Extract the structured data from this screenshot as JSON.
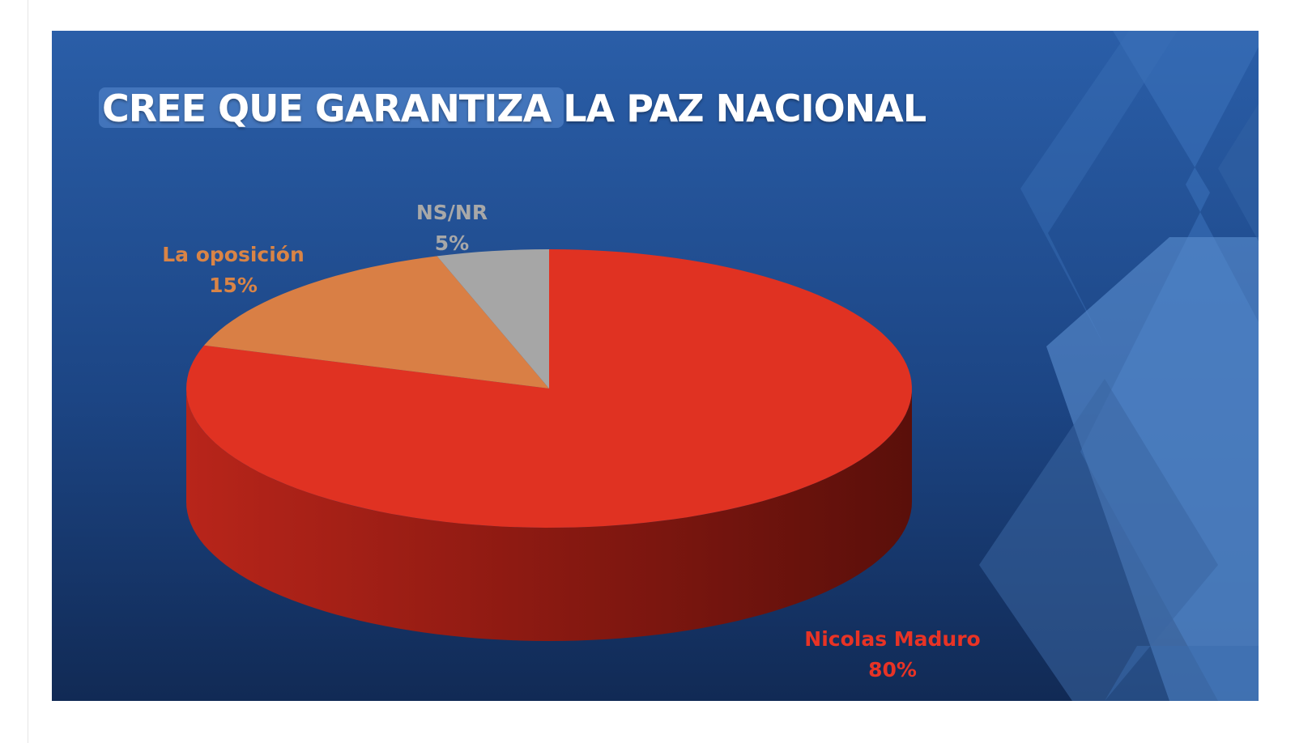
{
  "chart_data": {
    "type": "pie",
    "title": "CREE QUE GARANTIZA LA PAZ NACIONAL",
    "slices": [
      {
        "label": "Nicolas Maduro",
        "value": 80,
        "value_label": "80%",
        "color": "#e03222"
      },
      {
        "label": "La oposición",
        "value": 15,
        "value_label": "15%",
        "color": "#d97f45"
      },
      {
        "label": "NS/NR",
        "value": 5,
        "value_label": "5%",
        "color": "#a6a6a6"
      }
    ],
    "style": "3d",
    "background_color": "#1f4d8f"
  }
}
